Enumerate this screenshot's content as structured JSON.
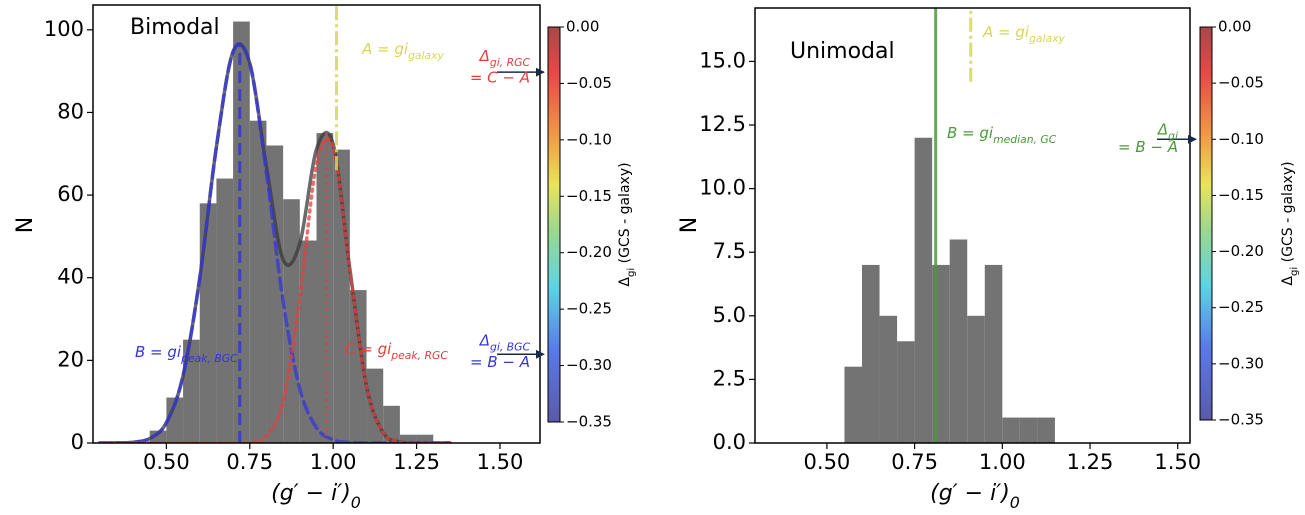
{
  "chart_data": [
    {
      "type": "histogram",
      "title": "Bimodal",
      "xlabel": {
        "text": "(g′ − i′)",
        "sub": "0"
      },
      "ylabel": "N",
      "bins": [
        0.45,
        0.5,
        0.55,
        0.6,
        0.65,
        0.7,
        0.75,
        0.8,
        0.85,
        0.9,
        0.95,
        1.0,
        1.05,
        1.1,
        1.15,
        1.2,
        1.25,
        1.3
      ],
      "values": [
        3,
        11,
        25,
        58,
        64,
        102,
        78,
        72,
        59,
        49,
        75,
        71,
        37,
        18,
        9,
        2,
        2
      ],
      "color": "#6b6b6b",
      "xlim": [
        0.28,
        1.62
      ],
      "xticks": [
        {
          "value": 0.5,
          "label": "0.50"
        },
        {
          "value": 0.75,
          "label": "0.75"
        },
        {
          "value": 1.0,
          "label": "1.00"
        },
        {
          "value": 1.25,
          "label": "1.25"
        },
        {
          "value": 1.5,
          "label": "1.50"
        }
      ],
      "ylim": [
        0,
        106
      ],
      "yticks": [
        0,
        20,
        40,
        60,
        80,
        100
      ],
      "line_x": [
        0.3,
        0.35,
        0.4,
        0.45,
        0.5,
        0.55,
        0.6,
        0.65,
        0.7,
        0.75,
        0.8,
        0.85,
        0.9,
        0.95,
        1.0,
        1.05,
        1.1,
        1.15,
        1.2,
        1.25,
        1.3,
        1.35
      ],
      "lines": [
        {
          "color": "#3a3a3a",
          "style": "solid",
          "values": [
            0,
            0.02,
            0.17,
            1.08,
            4.9,
            16.3,
            39.9,
            71.7,
            94.7,
            91.9,
            66.9,
            44.4,
            48.3,
            71.1,
            72.3,
            42.1,
            13.7,
            2.5,
            0.25,
            0.01,
            0,
            0
          ]
        },
        {
          "color": "#3535d8",
          "style": "dashed",
          "values": [
            0,
            0.02,
            0.17,
            1.08,
            4.9,
            16.3,
            39.9,
            71.7,
            94.7,
            91.8,
            65.3,
            34.2,
            13.1,
            3.7,
            0.77,
            0.12,
            0.01,
            0,
            0,
            0,
            0,
            0
          ]
        },
        {
          "color": "#e83c3c",
          "style": "dotted",
          "values": [
            0,
            0,
            0,
            0,
            0,
            0,
            0,
            0,
            0.01,
            0.14,
            1.6,
            10.2,
            35.2,
            67.4,
            71.5,
            42.0,
            13.7,
            2.5,
            0.25,
            0.01,
            0,
            0
          ]
        }
      ],
      "vlines": [
        {
          "x": 0.72,
          "ymin": 0,
          "ymax": 97,
          "color": "#3535d8",
          "style": "dashed",
          "label": "B = gi",
          "sub": "peak, BGC"
        },
        {
          "x": 0.98,
          "ymin": 0,
          "ymax": 75,
          "color": "#e83c3c",
          "style": "dotted",
          "label": "C = gi",
          "sub": "peak, RGC"
        },
        {
          "x": 1.01,
          "ymin": 66,
          "color": "#d6d65a",
          "style": "dashdot",
          "label": "A = gi",
          "sub": "galaxy"
        }
      ],
      "colorbar": {
        "colormap": "jet",
        "clim": [
          -0.35,
          0
        ],
        "ticks": [
          {
            "value": 0,
            "label": "0.00"
          },
          {
            "value": -0.05,
            "label": "−0.05"
          },
          {
            "value": -0.1,
            "label": "−0.10"
          },
          {
            "value": -0.15,
            "label": "−0.15"
          },
          {
            "value": -0.2,
            "label": "−0.20"
          },
          {
            "value": -0.25,
            "label": "−0.25"
          },
          {
            "value": -0.3,
            "label": "−0.30"
          },
          {
            "value": -0.35,
            "label": "−0.35"
          }
        ],
        "label": {
          "symbol": "Δ",
          "sub": "gi",
          "text": " (GCS - galaxy)"
        },
        "annotations": [
          {
            "value": -0.04,
            "symbol": "Δ",
            "sub": "gi, RGC",
            "text": "= C − A",
            "color": "#e83c3c"
          },
          {
            "value": -0.29,
            "symbol": "Δ",
            "sub": "gi, BGC",
            "text": "= B − A",
            "color": "#3535d8"
          }
        ]
      }
    },
    {
      "type": "histogram",
      "title": "Unimodal",
      "xlabel": {
        "text": "(g′ − i′)",
        "sub": "0"
      },
      "ylabel": "N",
      "bins": [
        0.55,
        0.6,
        0.65,
        0.7,
        0.75,
        0.8,
        0.85,
        0.9,
        0.95,
        1.0,
        1.05,
        1.1,
        1.15
      ],
      "values": [
        3,
        7,
        5,
        4,
        12,
        7,
        8,
        5,
        7,
        1,
        1,
        1
      ],
      "color": "#6b6b6b",
      "xlim": [
        0.295,
        1.535
      ],
      "xticks": [
        {
          "value": 0.5,
          "label": "0.50"
        },
        {
          "value": 0.75,
          "label": "0.75"
        },
        {
          "value": 1.0,
          "label": "1.00"
        },
        {
          "value": 1.25,
          "label": "1.25"
        },
        {
          "value": 1.5,
          "label": "1.50"
        }
      ],
      "ylim": [
        0,
        17.1
      ],
      "yticks": [
        {
          "value": 0,
          "label": "0.0"
        },
        {
          "value": 2.5,
          "label": "2.5"
        },
        {
          "value": 5,
          "label": "5.0"
        },
        {
          "value": 7.5,
          "label": "7.5"
        },
        {
          "value": 10,
          "label": "10.0"
        },
        {
          "value": 12.5,
          "label": "12.5"
        },
        {
          "value": 15,
          "label": "15.0"
        }
      ],
      "vlines": [
        {
          "x": 0.81,
          "color": "#4a9a3a",
          "style": "solid",
          "label": "B = gi",
          "sub": "median, GC"
        },
        {
          "x": 0.91,
          "ymin": 14.2,
          "color": "#d6d65a",
          "style": "dashdot",
          "label": "A = gi",
          "sub": "galaxy"
        }
      ],
      "colorbar": {
        "colormap": "jet",
        "clim": [
          -0.35,
          0
        ],
        "ticks": [
          {
            "value": 0,
            "label": "0.00"
          },
          {
            "value": -0.05,
            "label": "−0.05"
          },
          {
            "value": -0.1,
            "label": "−0.10"
          },
          {
            "value": -0.15,
            "label": "−0.15"
          },
          {
            "value": -0.2,
            "label": "−0.20"
          },
          {
            "value": -0.25,
            "label": "−0.25"
          },
          {
            "value": -0.3,
            "label": "−0.30"
          },
          {
            "value": -0.35,
            "label": "−0.35"
          }
        ],
        "label": {
          "symbol": "Δ",
          "sub": "gi",
          "text": " (GCS - galaxy)"
        },
        "annotations": [
          {
            "value": -0.1,
            "symbol": "Δ",
            "sub": "gi",
            "text": "= B − A",
            "color": "#4a9a3a"
          }
        ]
      }
    }
  ]
}
